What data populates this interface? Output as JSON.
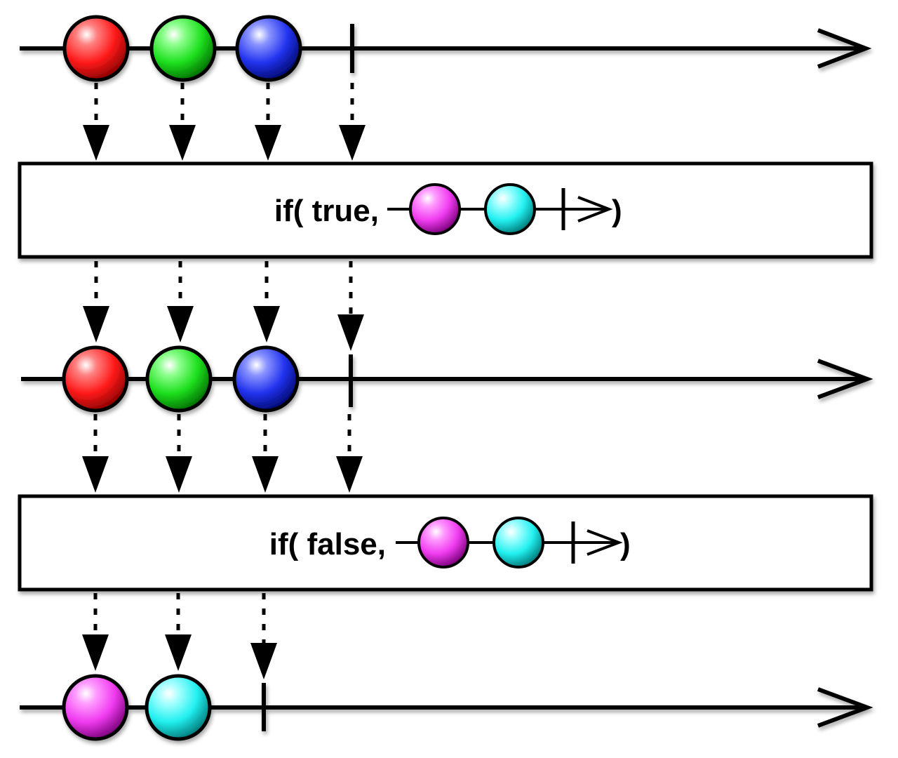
{
  "colors": {
    "red": "#ff1a1a",
    "green": "#1ee01e",
    "blue": "#2233ee",
    "magenta": "#f03cf0",
    "cyan": "#22f0f0",
    "ink": "#000000",
    "background": "#ffffff"
  },
  "operators": [
    {
      "prefix": "if( true,",
      "suffix": ")",
      "inline_marbles": [
        "magenta",
        "cyan"
      ]
    },
    {
      "prefix": "if( false,",
      "suffix": ")",
      "inline_marbles": [
        "magenta",
        "cyan"
      ]
    }
  ],
  "timelines": [
    {
      "name": "source",
      "marbles": [
        "red",
        "green",
        "blue"
      ],
      "completes": true
    },
    {
      "name": "if-true-output",
      "marbles": [
        "red",
        "green",
        "blue"
      ],
      "completes": true
    },
    {
      "name": "if-false-output",
      "marbles": [
        "magenta",
        "cyan"
      ],
      "completes": true
    }
  ]
}
